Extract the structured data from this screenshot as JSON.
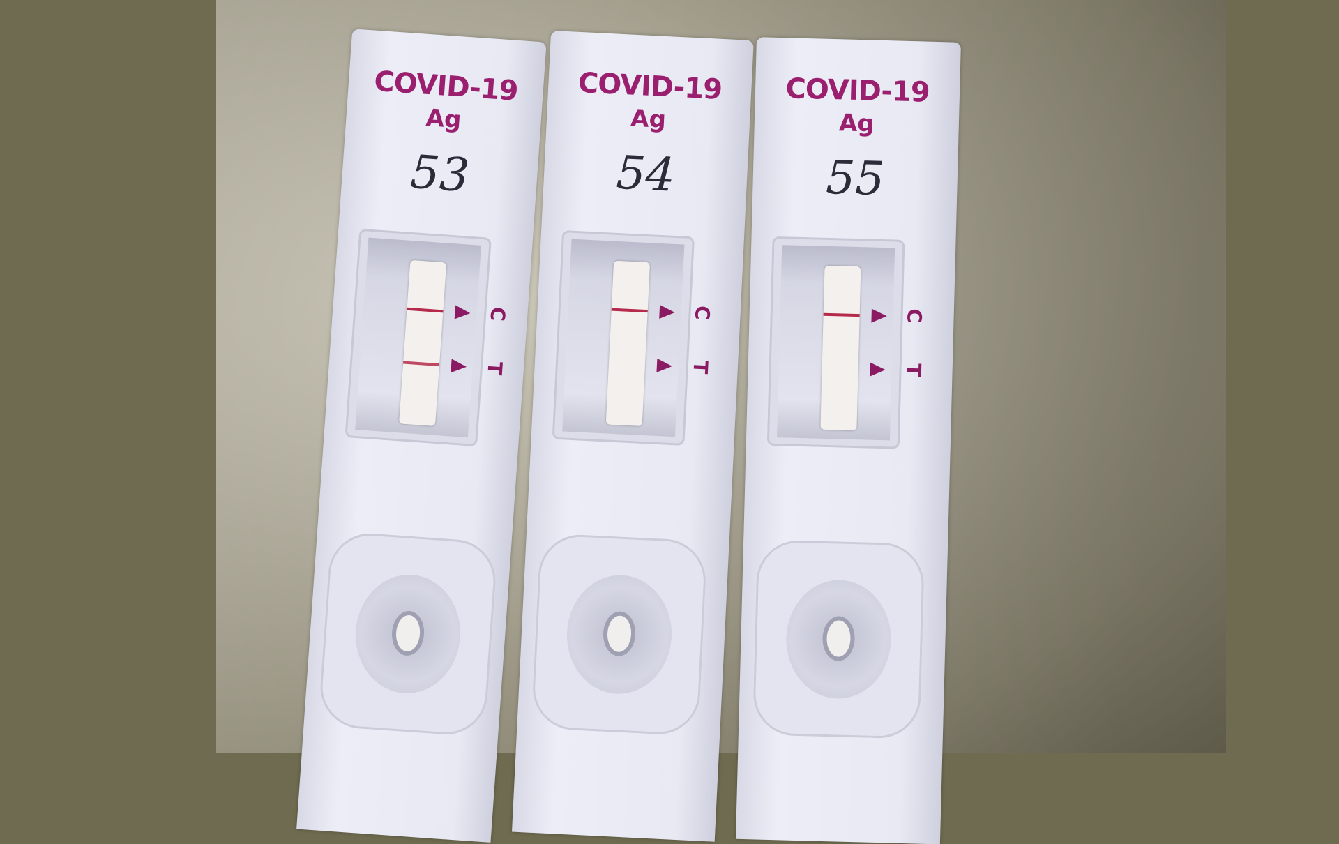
{
  "background_color": "#6f6b50",
  "accent_color": "#9a1f6e",
  "cassettes": [
    {
      "title": "COVID-19",
      "subtitle": "Ag",
      "handwritten_label": "53",
      "control_label": "C",
      "test_label": "T",
      "control_line": true,
      "test_line": true
    },
    {
      "title": "COVID-19",
      "subtitle": "Ag",
      "handwritten_label": "54",
      "control_label": "C",
      "test_label": "T",
      "control_line": true,
      "test_line": false
    },
    {
      "title": "COVID-19",
      "subtitle": "Ag",
      "handwritten_label": "55",
      "control_label": "C",
      "test_label": "T",
      "control_line": true,
      "test_line": false
    }
  ]
}
